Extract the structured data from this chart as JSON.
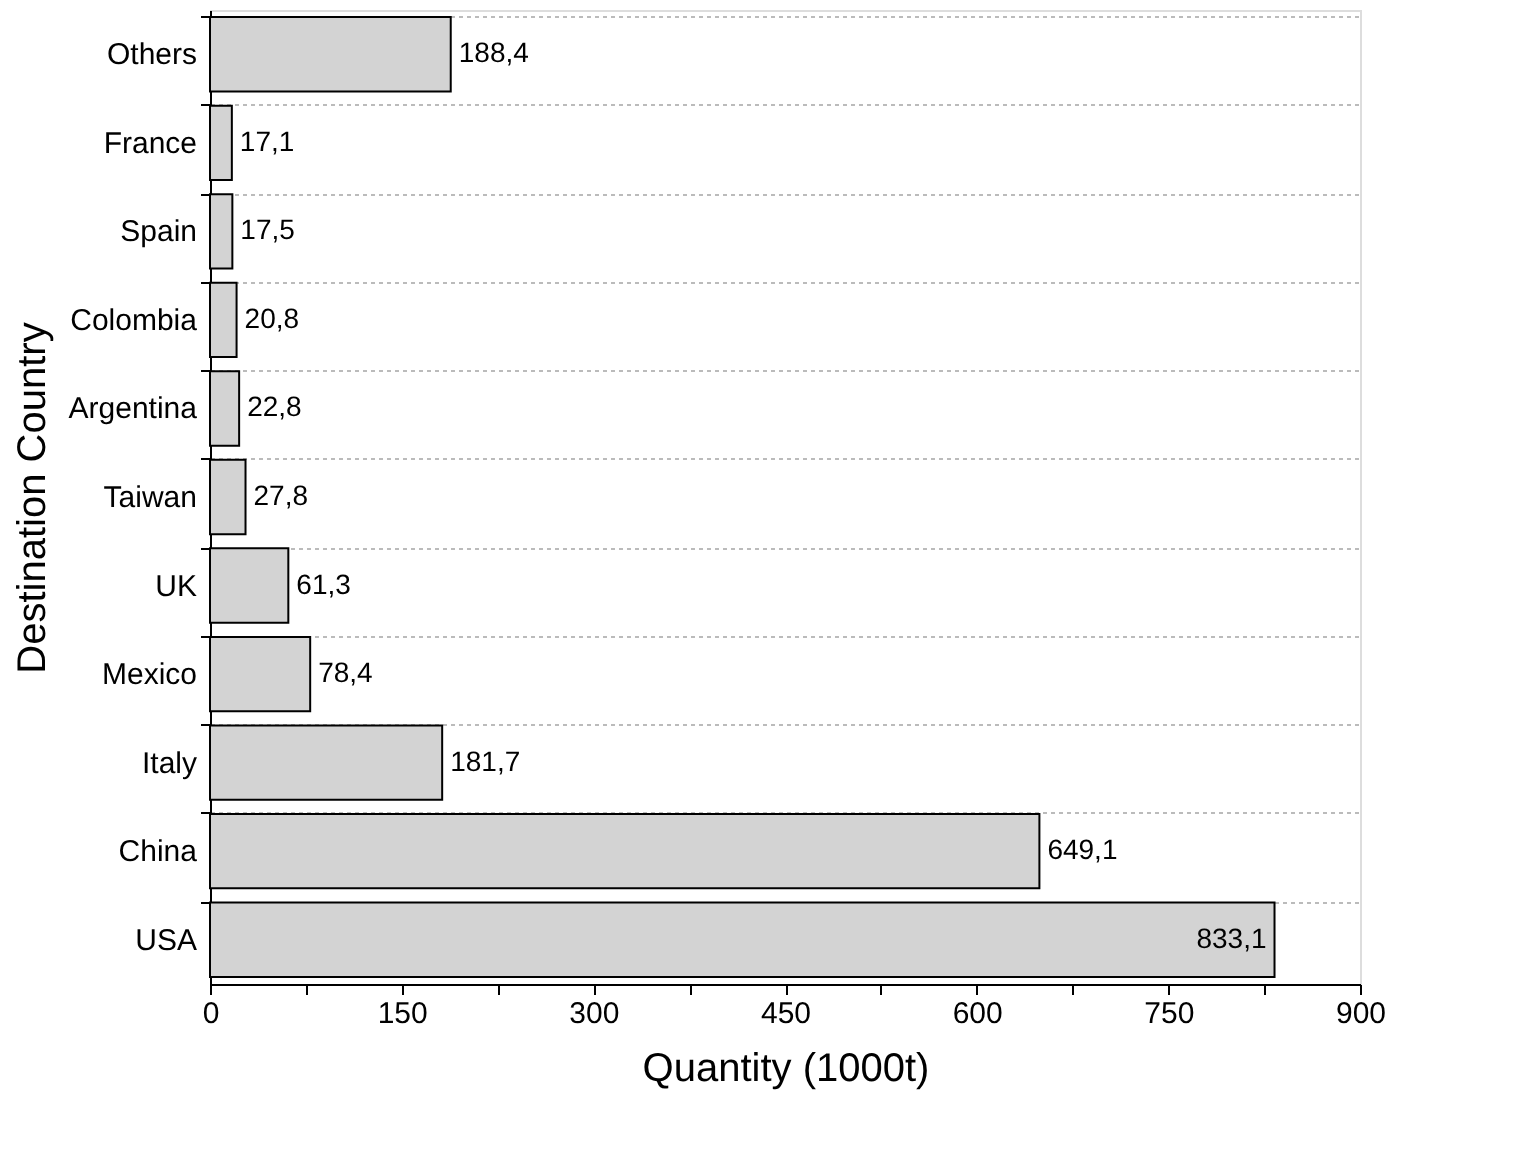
{
  "chart_data": {
    "type": "bar",
    "orientation": "horizontal",
    "categories": [
      "Others",
      "France",
      "Spain",
      "Colombia",
      "Argentina",
      "Taiwan",
      "UK",
      "Mexico",
      "Italy",
      "China",
      "USA"
    ],
    "values": [
      188.4,
      17.1,
      17.5,
      20.8,
      22.8,
      27.8,
      61.3,
      78.4,
      181.7,
      649.1,
      833.1
    ],
    "value_labels": [
      "188,4",
      "17,1",
      "17,5",
      "20,8",
      "22,8",
      "27,8",
      "61,3",
      "78,4",
      "181,7",
      "649,1",
      "833,1"
    ],
    "color": "#d3d3d3",
    "xlabel": "Quantity (1000t)",
    "ylabel": "Destination Country",
    "xlim": [
      0,
      900
    ],
    "xticks": [
      0,
      {
        "value": 75,
        "label": null
      },
      150,
      {
        "value": 225,
        "label": null
      },
      300,
      {
        "value": 375,
        "label": null
      },
      450,
      {
        "value": 525,
        "label": null
      },
      600,
      {
        "value": 675,
        "label": null
      },
      750,
      {
        "value": 825,
        "label": null
      },
      900
    ],
    "grid": "y"
  }
}
